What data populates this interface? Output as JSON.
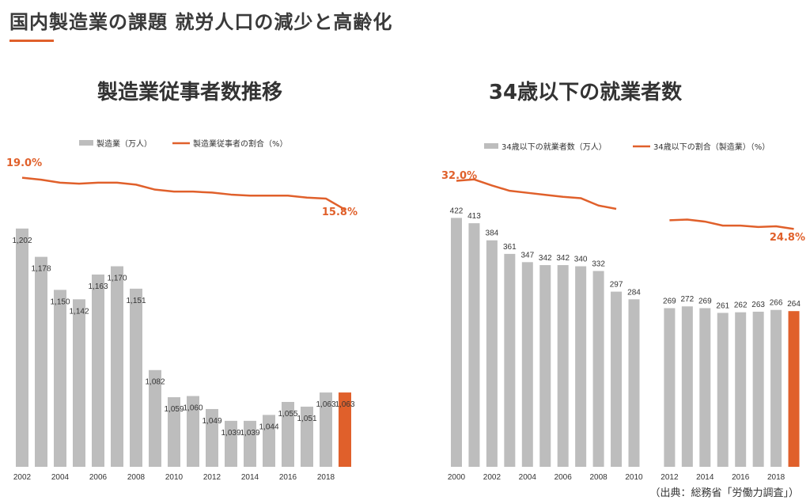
{
  "page_title": "国内製造業の課題  就労人口の減少と高齢化",
  "source": "（出典：総務省「労働力調査」）",
  "colors": {
    "bar": "#bdbdbd",
    "highlight": "#e0602b",
    "line": "#e0602b",
    "text": "#333333"
  },
  "chart_data": [
    {
      "type": "bar+line",
      "title": "製造業従事者数推移",
      "legend": [
        "製造業（万人）",
        "製造業従事者の割合（%）"
      ],
      "legend_placement": "top",
      "x": [
        2002,
        2003,
        2004,
        2005,
        2006,
        2007,
        2008,
        2009,
        2010,
        2011,
        2012,
        2013,
        2014,
        2015,
        2016,
        2017,
        2018,
        2019
      ],
      "x_tick_labels": [
        "2002",
        "2004",
        "2006",
        "2008",
        "2010",
        "2012",
        "2014",
        "2016",
        "2018"
      ],
      "series": [
        {
          "name": "製造業（万人）",
          "kind": "bar",
          "values": [
            1202,
            1178,
            1150,
            1142,
            1163,
            1170,
            1151,
            1082,
            1059,
            1060,
            1049,
            1039,
            1039,
            1044,
            1055,
            1051,
            1063,
            1063
          ],
          "labels": [
            "1,202",
            "1,178",
            "1,150",
            "1,142",
            "1,163",
            "1,170",
            "1,151",
            "1,082",
            "1,059",
            "1,060",
            "1,049",
            "1,039",
            "1,039",
            "1,044",
            "1,055",
            "1,051",
            "1,063",
            "1,063"
          ],
          "highlight_last": true,
          "ylim": [
            1000,
            1220
          ]
        },
        {
          "name": "製造業従事者の割合（%）",
          "kind": "line",
          "values": [
            19.0,
            18.8,
            18.5,
            18.4,
            18.5,
            18.5,
            18.3,
            17.8,
            17.6,
            17.6,
            17.5,
            17.3,
            17.2,
            17.2,
            17.2,
            17.0,
            16.9,
            15.8
          ],
          "ylim": [
            13,
            20
          ]
        }
      ],
      "annotations": [
        {
          "text": "19.0%"
        },
        {
          "text": "15.8%"
        }
      ]
    },
    {
      "type": "bar+line",
      "title": "34歳以下の就業者数",
      "legend": [
        "34歳以下の就業者数（万人）",
        "34歳以下の割合（製造業）（%）"
      ],
      "legend_placement": "top",
      "x": [
        2000,
        2001,
        2002,
        2003,
        2004,
        2005,
        2006,
        2007,
        2008,
        2009,
        2010,
        2011,
        2012,
        2013,
        2014,
        2015,
        2016,
        2017,
        2018,
        2019
      ],
      "x_tick_labels": [
        "2000",
        "2002",
        "2004",
        "2006",
        "2008",
        "2010",
        "2012",
        "2014",
        "2016",
        "2018"
      ],
      "series": [
        {
          "name": "34歳以下の就業者数（万人）",
          "kind": "bar",
          "values": [
            422,
            413,
            384,
            361,
            347,
            342,
            342,
            340,
            332,
            297,
            284,
            null,
            269,
            272,
            269,
            261,
            262,
            263,
            266,
            264
          ],
          "labels": [
            "422",
            "413",
            "384",
            "361",
            "347",
            "342",
            "342",
            "340",
            "332",
            "297",
            "284",
            "",
            "269",
            "272",
            "269",
            "261",
            "262",
            "263",
            "266",
            "264"
          ],
          "highlight_last": true,
          "ylim": [
            0,
            440
          ]
        },
        {
          "name": "34歳以下の割合（製造業）（%）",
          "kind": "line",
          "values": [
            32.0,
            32.2,
            31.3,
            30.5,
            30.2,
            29.9,
            29.6,
            29.4,
            28.3,
            27.8,
            null,
            null,
            26.1,
            26.2,
            25.9,
            25.3,
            25.3,
            25.1,
            25.2,
            24.8
          ],
          "ylim": [
            20,
            33
          ]
        }
      ],
      "annotations": [
        {
          "text": "32.0%"
        },
        {
          "text": "24.8%"
        }
      ]
    }
  ]
}
